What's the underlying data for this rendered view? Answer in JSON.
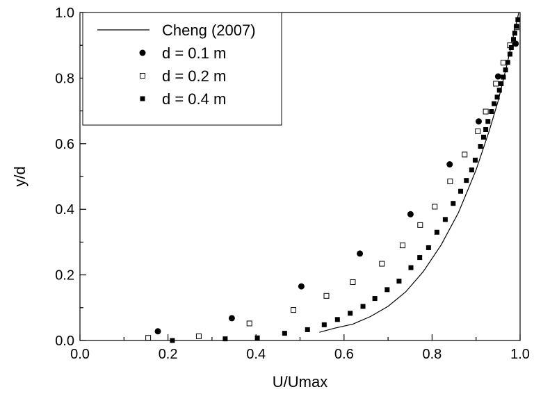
{
  "chart_data": {
    "type": "scatter",
    "xlabel": "U/Umax",
    "ylabel": "y/d",
    "xlim": [
      0.0,
      1.0
    ],
    "ylim": [
      0.0,
      1.0
    ],
    "xticks": [
      "0.0",
      "0.2",
      "0.4",
      "0.6",
      "0.8",
      "1.0"
    ],
    "yticks": [
      "0.0",
      "0.2",
      "0.4",
      "0.6",
      "0.8",
      "1.0"
    ],
    "xtick_values": [
      0.0,
      0.2,
      0.4,
      0.6,
      0.8,
      1.0
    ],
    "ytick_values": [
      0.0,
      0.2,
      0.4,
      0.6,
      0.8,
      1.0
    ],
    "grid": false,
    "legend_position": "top-left",
    "series": [
      {
        "name": "Cheng (2007)",
        "kind": "line",
        "color": "#000000",
        "points": [
          [
            0.544,
            0.025
          ],
          [
            0.58,
            0.038
          ],
          [
            0.62,
            0.05
          ],
          [
            0.66,
            0.073
          ],
          [
            0.7,
            0.104
          ],
          [
            0.74,
            0.148
          ],
          [
            0.78,
            0.21
          ],
          [
            0.82,
            0.29
          ],
          [
            0.86,
            0.39
          ],
          [
            0.9,
            0.52
          ],
          [
            0.93,
            0.64
          ],
          [
            0.95,
            0.73
          ],
          [
            0.97,
            0.84
          ],
          [
            0.985,
            0.93
          ],
          [
            0.997,
            1.0
          ]
        ]
      },
      {
        "name": "d = 0.1 m",
        "kind": "marker",
        "marker": "filled-circle",
        "color": "#000000",
        "points": [
          [
            0.177,
            0.028
          ],
          [
            0.345,
            0.068
          ],
          [
            0.503,
            0.165
          ],
          [
            0.636,
            0.265
          ],
          [
            0.751,
            0.385
          ],
          [
            0.84,
            0.537
          ],
          [
            0.906,
            0.668
          ],
          [
            0.95,
            0.805
          ],
          [
            0.99,
            0.905
          ]
        ]
      },
      {
        "name": "d = 0.2 m",
        "kind": "marker",
        "marker": "open-square",
        "color": "#000000",
        "points": [
          [
            0.155,
            0.008
          ],
          [
            0.27,
            0.013
          ],
          [
            0.385,
            0.052
          ],
          [
            0.485,
            0.093
          ],
          [
            0.56,
            0.136
          ],
          [
            0.62,
            0.178
          ],
          [
            0.686,
            0.234
          ],
          [
            0.733,
            0.29
          ],
          [
            0.773,
            0.352
          ],
          [
            0.806,
            0.408
          ],
          [
            0.841,
            0.485
          ],
          [
            0.874,
            0.567
          ],
          [
            0.904,
            0.638
          ],
          [
            0.922,
            0.698
          ],
          [
            0.945,
            0.783
          ],
          [
            0.962,
            0.847
          ],
          [
            0.977,
            0.9
          ],
          [
            0.992,
            0.955
          ]
        ]
      },
      {
        "name": "d = 0.4 m",
        "kind": "marker",
        "marker": "filled-square",
        "color": "#000000",
        "points": [
          [
            0.21,
            0.0
          ],
          [
            0.33,
            0.005
          ],
          [
            0.403,
            0.008
          ],
          [
            0.465,
            0.022
          ],
          [
            0.517,
            0.033
          ],
          [
            0.555,
            0.048
          ],
          [
            0.585,
            0.064
          ],
          [
            0.614,
            0.083
          ],
          [
            0.643,
            0.104
          ],
          [
            0.67,
            0.128
          ],
          [
            0.698,
            0.155
          ],
          [
            0.725,
            0.181
          ],
          [
            0.752,
            0.222
          ],
          [
            0.772,
            0.253
          ],
          [
            0.792,
            0.283
          ],
          [
            0.811,
            0.33
          ],
          [
            0.83,
            0.369
          ],
          [
            0.848,
            0.418
          ],
          [
            0.865,
            0.455
          ],
          [
            0.878,
            0.488
          ],
          [
            0.89,
            0.52
          ],
          [
            0.898,
            0.55
          ],
          [
            0.91,
            0.592
          ],
          [
            0.917,
            0.62
          ],
          [
            0.922,
            0.643
          ],
          [
            0.927,
            0.668
          ],
          [
            0.935,
            0.698
          ],
          [
            0.941,
            0.722
          ],
          [
            0.948,
            0.742
          ],
          [
            0.953,
            0.763
          ],
          [
            0.957,
            0.783
          ],
          [
            0.962,
            0.803
          ],
          [
            0.967,
            0.825
          ],
          [
            0.972,
            0.848
          ],
          [
            0.977,
            0.873
          ],
          [
            0.98,
            0.893
          ],
          [
            0.985,
            0.918
          ],
          [
            0.988,
            0.937
          ],
          [
            0.992,
            0.958
          ],
          [
            0.995,
            0.978
          ]
        ]
      }
    ]
  }
}
